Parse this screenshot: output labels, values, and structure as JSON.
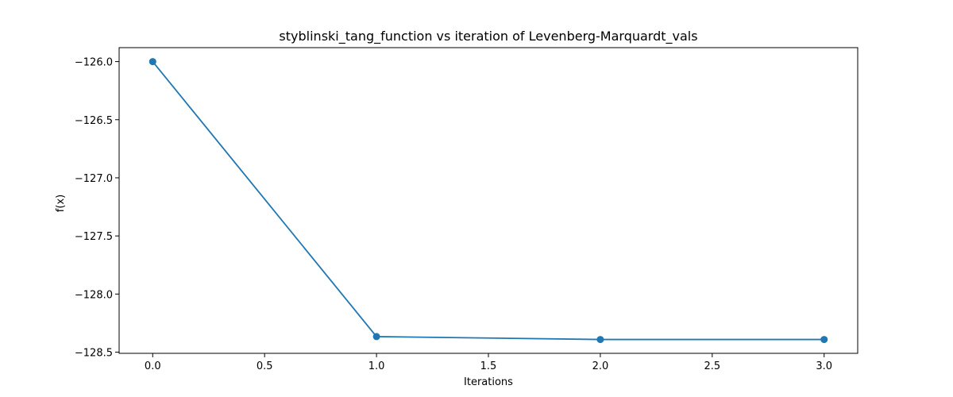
{
  "chart_data": {
    "type": "line",
    "title": "styblinski_tang_function vs iteration of Levenberg-Marquardt_vals",
    "xlabel": "Iterations",
    "ylabel": "f(x)",
    "x": [
      0,
      1,
      2,
      3
    ],
    "series": [
      {
        "values": [
          -126.0,
          -128.366,
          -128.391,
          -128.391
        ]
      }
    ],
    "xlim": [
      -0.15,
      3.15
    ],
    "ylim": [
      -128.51,
      -125.88
    ],
    "xticks": [
      0.0,
      0.5,
      1.0,
      1.5,
      2.0,
      2.5,
      3.0
    ],
    "xtick_labels": [
      "0.0",
      "0.5",
      "1.0",
      "1.5",
      "2.0",
      "2.5",
      "3.0"
    ],
    "yticks": [
      -126.0,
      -126.5,
      -127.0,
      -127.5,
      -128.0,
      -128.5
    ],
    "ytick_labels": [
      "−126.0",
      "−126.5",
      "−127.0",
      "−127.5",
      "−128.0",
      "−128.5"
    ],
    "grid": false,
    "marker": "circle",
    "line_color": "#1f77b4"
  }
}
